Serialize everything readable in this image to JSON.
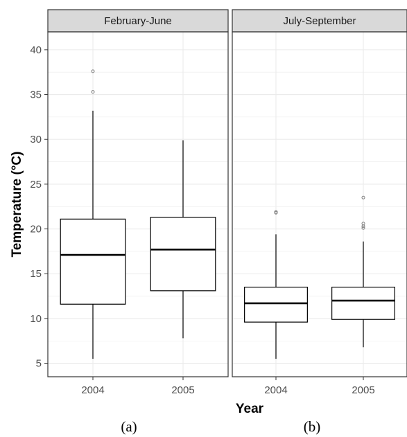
{
  "chart_data": {
    "type": "box",
    "xlabel": "Year",
    "ylabel": "Temperature (°C)",
    "ylim": [
      3.5,
      42
    ],
    "yticks": [
      5,
      10,
      15,
      20,
      25,
      30,
      35,
      40
    ],
    "grid": true,
    "colors": {
      "panel_border": "#333333",
      "strip_fill": "#d9d9d9",
      "grid": "#ebebeb",
      "box": "#000000",
      "outlier": "#808080"
    },
    "panels": [
      {
        "title": "February-June",
        "caption": "(a)",
        "boxes": [
          {
            "category": "2004",
            "whisker_low": 5.5,
            "q1": 11.6,
            "median": 17.1,
            "q3": 21.1,
            "whisker_high": 33.2,
            "outliers": [
              35.3,
              37.6
            ]
          },
          {
            "category": "2005",
            "whisker_low": 7.8,
            "q1": 13.1,
            "median": 17.7,
            "q3": 21.3,
            "whisker_high": 29.9,
            "outliers": []
          }
        ]
      },
      {
        "title": "July-September",
        "caption": "(b)",
        "boxes": [
          {
            "category": "2004",
            "whisker_low": 5.5,
            "q1": 9.6,
            "median": 11.7,
            "q3": 13.5,
            "whisker_high": 19.4,
            "outliers": [
              21.8,
              21.9
            ]
          },
          {
            "category": "2005",
            "whisker_low": 6.8,
            "q1": 9.9,
            "median": 12.0,
            "q3": 13.5,
            "whisker_high": 18.6,
            "outliers": [
              20.1,
              20.3,
              20.6,
              23.5
            ]
          }
        ]
      }
    ]
  }
}
